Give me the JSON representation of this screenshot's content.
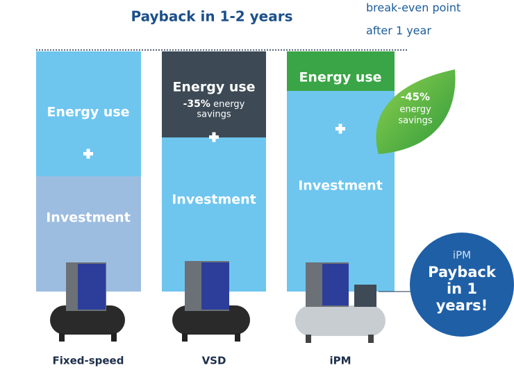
{
  "title": "Payback in 1-2 years",
  "note": {
    "line1": "break-even point",
    "line2": "after 1 year"
  },
  "columns": [
    {
      "label": "Fixed-speed",
      "top": {
        "text": "Energy use"
      },
      "bottom": {
        "text": "Investment"
      }
    },
    {
      "label": "VSD",
      "top": {
        "text": "Energy use",
        "savings_pct": "-35%",
        "savings_line1": "energy",
        "savings_line2": "savings"
      },
      "bottom": {
        "text": "Investment"
      }
    },
    {
      "label": "iPM",
      "top": {
        "text": "Energy use"
      },
      "bottom": {
        "text": "Investment"
      }
    }
  ],
  "leaf": {
    "pct": "-45%",
    "line1": "energy",
    "line2": "savings"
  },
  "badge": {
    "small": "iPM",
    "line1": "Payback",
    "line2": "in 1",
    "line3": "years!"
  }
}
